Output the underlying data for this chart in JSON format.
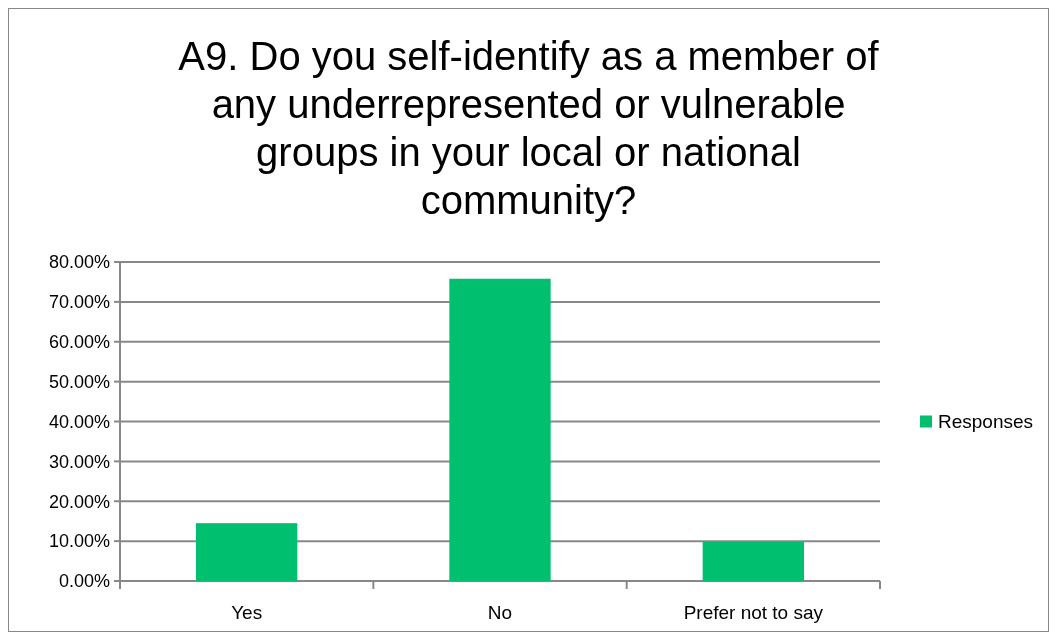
{
  "chart_data": {
    "type": "bar",
    "title": "A9. Do you self-identify as a member of any underrepresented or vulnerable groups in your local or national community?",
    "categories": [
      "Yes",
      "No",
      "Prefer not to say"
    ],
    "series": [
      {
        "name": "Responses",
        "color": "#00bf6f",
        "values": [
          14.5,
          75.8,
          9.8
        ]
      }
    ],
    "ylim": [
      0,
      80
    ],
    "yticks": [
      {
        "value": 0,
        "label": "0.00%"
      },
      {
        "value": 10,
        "label": "10.00%"
      },
      {
        "value": 20,
        "label": "20.00%"
      },
      {
        "value": 30,
        "label": "30.00%"
      },
      {
        "value": 40,
        "label": "40.00%"
      },
      {
        "value": 50,
        "label": "50.00%"
      },
      {
        "value": 60,
        "label": "60.00%"
      },
      {
        "value": 70,
        "label": "70.00%"
      },
      {
        "value": 80,
        "label": "80.00%"
      }
    ],
    "grid": "y",
    "legend": "right"
  }
}
